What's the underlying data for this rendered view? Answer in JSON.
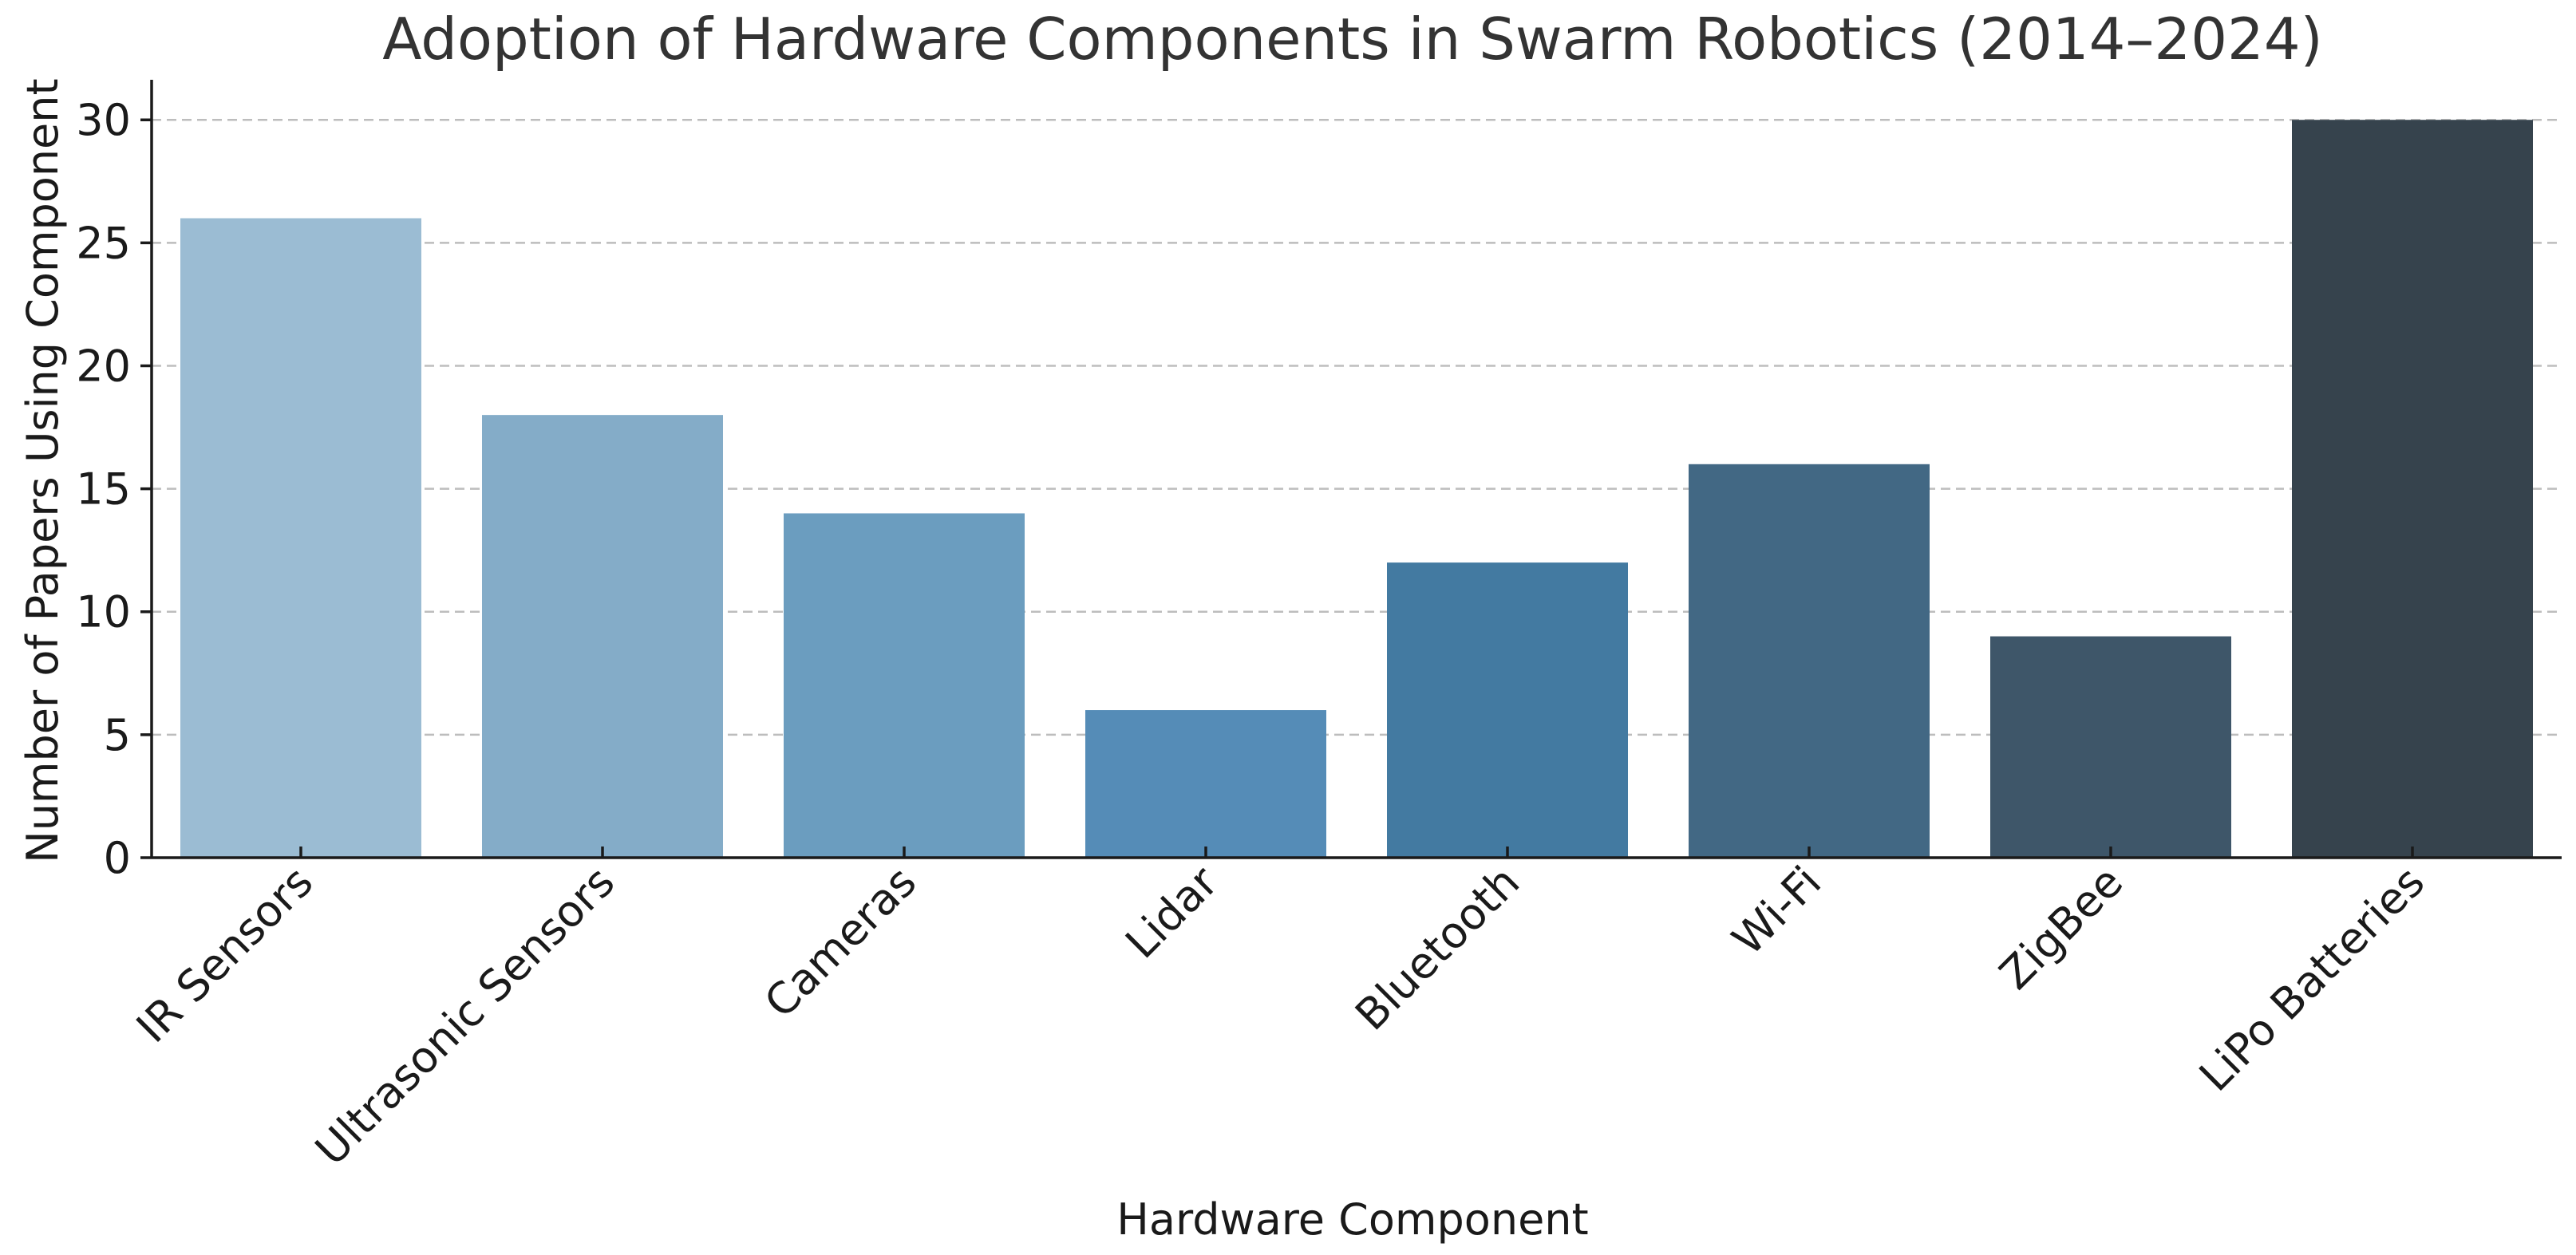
{
  "chart_data": {
    "type": "bar",
    "title": "Adoption of Hardware Components in Swarm Robotics (2014–2024)",
    "xlabel": "Hardware Component",
    "ylabel": "Number of Papers Using Component",
    "categories": [
      "IR Sensors",
      "Ultrasonic Sensors",
      "Cameras",
      "Lidar",
      "Bluetooth",
      "Wi-Fi",
      "ZigBee",
      "LiPo Batteries"
    ],
    "values": [
      26,
      18,
      14,
      6,
      12,
      16,
      9,
      30
    ],
    "colors": [
      "#9bbcd3",
      "#84acc8",
      "#6b9dbf",
      "#558cb7",
      "#437aa1",
      "#426884",
      "#3e5669",
      "#36434d"
    ],
    "ylim": [
      0,
      31.5
    ],
    "yticks": [
      0,
      5,
      10,
      15,
      20,
      25,
      30
    ],
    "grid": "horizontal dashed",
    "legend": "none"
  }
}
